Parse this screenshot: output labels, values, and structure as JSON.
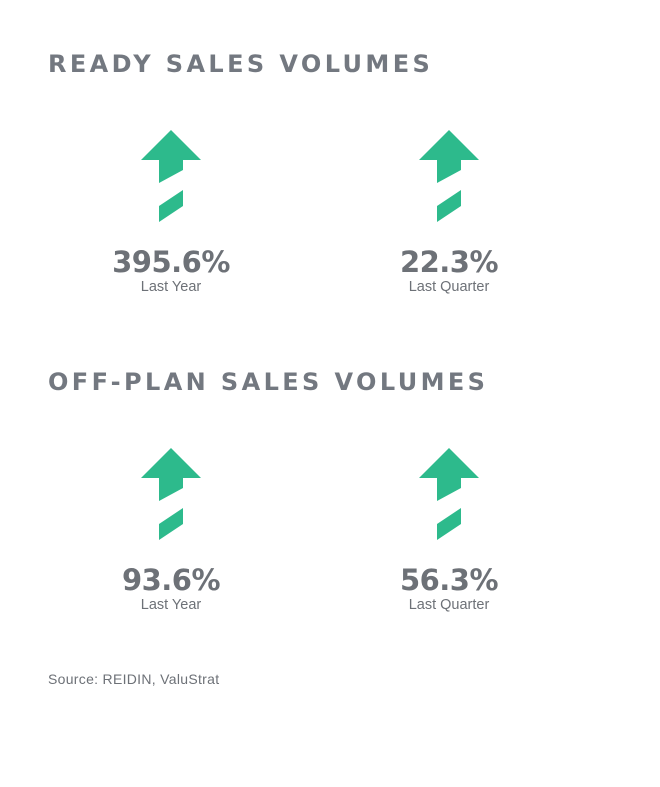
{
  "sections": [
    {
      "title": "READY SALES VOLUMES",
      "stats": [
        {
          "value": "395.6%",
          "period": "Last Year",
          "trend": "up"
        },
        {
          "value": "22.3%",
          "period": "Last Quarter",
          "trend": "up"
        }
      ]
    },
    {
      "title": "OFF-PLAN SALES VOLUMES",
      "stats": [
        {
          "value": "93.6%",
          "period": "Last Year",
          "trend": "up"
        },
        {
          "value": "56.3%",
          "period": "Last Quarter",
          "trend": "up"
        }
      ]
    }
  ],
  "source": "Source: REIDIN, ValuStrat",
  "colors": {
    "arrow": "#2dba8c",
    "text": "#6d7177",
    "heading": "#737880",
    "background": "#ffffff"
  },
  "icons": {
    "trend_up": "up-arrow-icon"
  }
}
